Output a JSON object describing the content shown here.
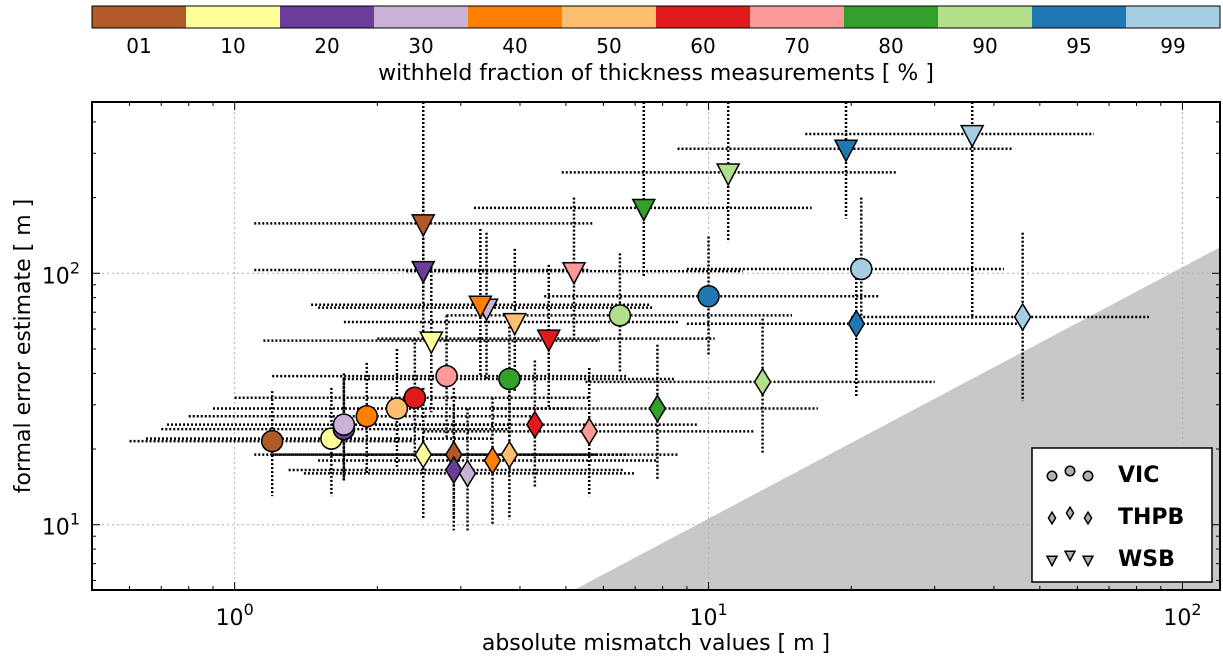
{
  "chart_data": {
    "type": "scatter",
    "xlabel": "absolute mismatch values [ m ]",
    "ylabel": "formal error estimate [ m ]",
    "xscale": "log",
    "yscale": "log",
    "xlim": [
      0.5,
      120
    ],
    "ylim": [
      5.5,
      480
    ],
    "grid": true,
    "x_tick_labels": [
      {
        "base": "10",
        "exp": "0"
      },
      {
        "base": "10",
        "exp": "1"
      },
      {
        "base": "10",
        "exp": "2"
      }
    ],
    "y_tick_labels": [
      {
        "base": "10",
        "exp": "1"
      },
      {
        "base": "10",
        "exp": "2"
      }
    ],
    "colorbar": {
      "label": "withheld fraction of thickness measurements [ % ]",
      "categories": [
        "01",
        "10",
        "20",
        "30",
        "40",
        "50",
        "60",
        "70",
        "80",
        "90",
        "95",
        "99"
      ],
      "colors": [
        "#b15928",
        "#ffff99",
        "#6a3d9a",
        "#cab2d6",
        "#ff7f00",
        "#fdbf6f",
        "#e31a1c",
        "#fb9a99",
        "#33a02c",
        "#b2df8a",
        "#1f78b4",
        "#a6cee3"
      ]
    },
    "legend": {
      "placement": "lower-right",
      "entries": [
        {
          "label": "VIC",
          "marker": "circle"
        },
        {
          "label": "THPB",
          "marker": "diamond"
        },
        {
          "label": "WSB",
          "marker": "triangle-down"
        }
      ]
    },
    "shaded_region": {
      "description_free": true,
      "x_start": 5.2,
      "slope": 1
    },
    "series": [
      {
        "name": "VIC",
        "marker": "circle",
        "points": [
          {
            "x": 1.2,
            "y": 21.5,
            "xmin": 0.6,
            "xmax": 2.4,
            "ymin": 13,
            "ymax": 34,
            "cat": 0
          },
          {
            "x": 1.6,
            "y": 22,
            "xmin": 0.65,
            "xmax": 3.5,
            "ymin": 13,
            "ymax": 35,
            "cat": 1
          },
          {
            "x": 1.7,
            "y": 24,
            "xmin": 0.7,
            "xmax": 3.8,
            "ymin": 15,
            "ymax": 38,
            "cat": 2
          },
          {
            "x": 1.7,
            "y": 25,
            "xmin": 0.72,
            "xmax": 3.8,
            "ymin": 15,
            "ymax": 40,
            "cat": 3
          },
          {
            "x": 1.9,
            "y": 27,
            "xmin": 0.8,
            "xmax": 4.3,
            "ymin": 16,
            "ymax": 44,
            "cat": 4
          },
          {
            "x": 2.2,
            "y": 29,
            "xmin": 0.9,
            "xmax": 5.2,
            "ymin": 17,
            "ymax": 50,
            "cat": 5
          },
          {
            "x": 2.4,
            "y": 32,
            "xmin": 1.0,
            "xmax": 5.6,
            "ymin": 18,
            "ymax": 55,
            "cat": 6
          },
          {
            "x": 2.8,
            "y": 39,
            "xmin": 1.2,
            "xmax": 6.7,
            "ymin": 22,
            "ymax": 68,
            "cat": 7
          },
          {
            "x": 3.8,
            "y": 38,
            "xmin": 1.7,
            "xmax": 8.5,
            "ymin": 22,
            "ymax": 66,
            "cat": 8
          },
          {
            "x": 6.5,
            "y": 68,
            "xmin": 2.8,
            "xmax": 15,
            "ymin": 40,
            "ymax": 120,
            "cat": 9
          },
          {
            "x": 10,
            "y": 81,
            "xmin": 4.5,
            "xmax": 23,
            "ymin": 47,
            "ymax": 140,
            "cat": 10
          },
          {
            "x": 21,
            "y": 104,
            "xmin": 9,
            "xmax": 42,
            "ymin": 60,
            "ymax": 200,
            "cat": 11
          }
        ]
      },
      {
        "name": "THPB",
        "marker": "diamond",
        "points": [
          {
            "x": 2.9,
            "y": 19,
            "xmin": 1.2,
            "xmax": 6.8,
            "ymin": 10.5,
            "ymax": 35,
            "cat": 0
          },
          {
            "x": 2.5,
            "y": 19,
            "xmin": 1.1,
            "xmax": 5.8,
            "ymin": 10.5,
            "ymax": 35,
            "cat": 1
          },
          {
            "x": 2.9,
            "y": 16.5,
            "xmin": 1.3,
            "xmax": 6.6,
            "ymin": 9.5,
            "ymax": 30,
            "cat": 2
          },
          {
            "x": 3.1,
            "y": 16,
            "xmin": 1.4,
            "xmax": 7.0,
            "ymin": 9.5,
            "ymax": 29,
            "cat": 3
          },
          {
            "x": 3.5,
            "y": 18,
            "xmin": 1.5,
            "xmax": 7.8,
            "ymin": 10,
            "ymax": 32,
            "cat": 4
          },
          {
            "x": 3.8,
            "y": 19,
            "xmin": 1.6,
            "xmax": 8.6,
            "ymin": 10.5,
            "ymax": 34,
            "cat": 5
          },
          {
            "x": 4.3,
            "y": 25,
            "xmin": 1.9,
            "xmax": 9.5,
            "ymin": 14,
            "ymax": 45,
            "cat": 6
          },
          {
            "x": 5.6,
            "y": 23.5,
            "xmin": 2.5,
            "xmax": 12.5,
            "ymin": 13,
            "ymax": 42,
            "cat": 7
          },
          {
            "x": 7.8,
            "y": 29,
            "xmin": 3.5,
            "xmax": 17,
            "ymin": 15,
            "ymax": 52,
            "cat": 8
          },
          {
            "x": 13,
            "y": 37,
            "xmin": 5.5,
            "xmax": 30,
            "ymin": 19,
            "ymax": 66,
            "cat": 9
          },
          {
            "x": 20.5,
            "y": 63,
            "xmin": 9,
            "xmax": 46,
            "ymin": 32,
            "ymax": 115,
            "cat": 10
          },
          {
            "x": 46,
            "y": 67,
            "xmin": 20,
            "xmax": 85,
            "ymin": 31,
            "ymax": 145,
            "cat": 11
          }
        ]
      },
      {
        "name": "WSB",
        "marker": "triangle-down",
        "points": [
          {
            "x": 2.5,
            "y": 158,
            "xmin": 1.1,
            "xmax": 5.7,
            "ymin": 82,
            "ymax": 480,
            "cat": 0
          },
          {
            "x": 2.6,
            "y": 54,
            "xmin": 1.15,
            "xmax": 5.9,
            "ymin": 28,
            "ymax": 110,
            "cat": 1
          },
          {
            "x": 2.5,
            "y": 103,
            "xmin": 1.1,
            "xmax": 5.6,
            "ymin": 54,
            "ymax": 200,
            "cat": 2
          },
          {
            "x": 3.4,
            "y": 73,
            "xmin": 1.5,
            "xmax": 7.6,
            "ymin": 38,
            "ymax": 145,
            "cat": 3
          },
          {
            "x": 3.3,
            "y": 75,
            "xmin": 1.45,
            "xmax": 7.5,
            "ymin": 39,
            "ymax": 150,
            "cat": 4
          },
          {
            "x": 3.9,
            "y": 64,
            "xmin": 1.7,
            "xmax": 8.7,
            "ymin": 34,
            "ymax": 125,
            "cat": 5
          },
          {
            "x": 4.6,
            "y": 55,
            "xmin": 2.0,
            "xmax": 10.3,
            "ymin": 29,
            "ymax": 108,
            "cat": 6
          },
          {
            "x": 5.2,
            "y": 102,
            "xmin": 2.3,
            "xmax": 11.8,
            "ymin": 54,
            "ymax": 200,
            "cat": 7
          },
          {
            "x": 7.3,
            "y": 182,
            "xmin": 3.2,
            "xmax": 16.5,
            "ymin": 96,
            "ymax": 480,
            "cat": 8
          },
          {
            "x": 11,
            "y": 252,
            "xmin": 4.9,
            "xmax": 25,
            "ymin": 133,
            "ymax": 480,
            "cat": 9
          },
          {
            "x": 19.5,
            "y": 313,
            "xmin": 8.6,
            "xmax": 44,
            "ymin": 165,
            "ymax": 480,
            "cat": 10
          },
          {
            "x": 36,
            "y": 358,
            "xmin": 16,
            "xmax": 65,
            "ymin": 66,
            "ymax": 480,
            "cat": 11
          }
        ]
      }
    ]
  }
}
